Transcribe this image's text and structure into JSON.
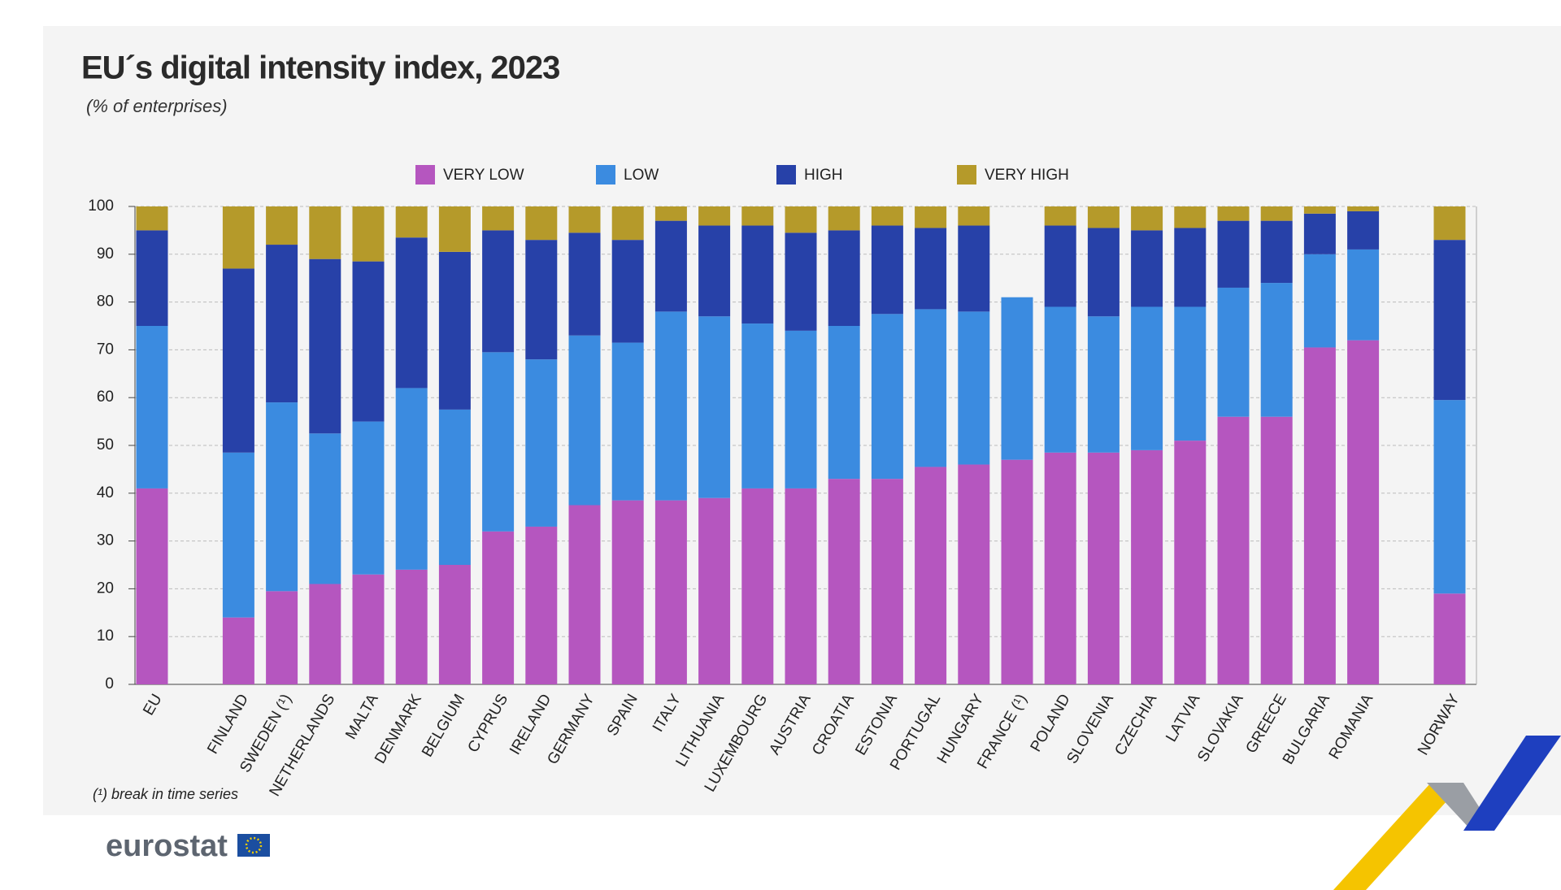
{
  "chart_data": {
    "type": "stacked_bar",
    "title": "EU´s digital intensity index, 2023",
    "subtitle": "(% of enterprises)",
    "footnote": "(¹) break in time series",
    "source": "eurostat",
    "categories": [
      "EU",
      "FINLAND",
      "SWEDEN (¹)",
      "NETHERLANDS",
      "MALTA",
      "DENMARK",
      "BELGIUM",
      "CYPRUS",
      "IRELAND",
      "GERMANY",
      "SPAIN",
      "ITALY",
      "LITHUANIA",
      "LUXEMBOURG",
      "AUSTRIA",
      "CROATIA",
      "ESTONIA",
      "PORTUGAL",
      "HUNGARY",
      "FRANCE (¹)",
      "POLAND",
      "SLOVENIA",
      "CZECHIA",
      "LATVIA",
      "SLOVAKIA",
      "GREECE",
      "BULGARIA",
      "ROMANIA",
      "NORWAY"
    ],
    "series": [
      {
        "name": "VERY LOW",
        "color": "#b556bf",
        "values": [
          41,
          14,
          19.5,
          21,
          23,
          24,
          25,
          32,
          33,
          37.5,
          38.5,
          38.5,
          39,
          41,
          41,
          43,
          43,
          45.5,
          46,
          47,
          48.5,
          48.5,
          49,
          51,
          56,
          56,
          70.5,
          72,
          19
        ]
      },
      {
        "name": "LOW",
        "color": "#3b8be0",
        "values": [
          34,
          34.5,
          39.5,
          31.5,
          32,
          38,
          32.5,
          37.5,
          35,
          35.5,
          33,
          39.5,
          38,
          34.5,
          33,
          32,
          34.5,
          33,
          32,
          34,
          30.5,
          28.5,
          30,
          28,
          27,
          28,
          19.5,
          19,
          40.5
        ]
      },
      {
        "name": "HIGH",
        "color": "#2741a8",
        "values": [
          20,
          38.5,
          33,
          36.5,
          33.5,
          31.5,
          33,
          25.5,
          25,
          21.5,
          21.5,
          19,
          19,
          20.5,
          20.5,
          20,
          18.5,
          17,
          18,
          null,
          17,
          18.5,
          16,
          16.5,
          14,
          13,
          8.5,
          8,
          33.5
        ]
      },
      {
        "name": "VERY HIGH",
        "color": "#b59a2a",
        "values": [
          5,
          13,
          8,
          11,
          11.5,
          6.5,
          9.5,
          5,
          7,
          5.5,
          7,
          3,
          4,
          4,
          5.5,
          5,
          4,
          4.5,
          4,
          null,
          4,
          4.5,
          5,
          4.5,
          3,
          3,
          1.5,
          1,
          7
        ]
      }
    ],
    "ylim": [
      0,
      100
    ],
    "yticks": [
      0,
      10,
      20,
      30,
      40,
      50,
      60,
      70,
      80,
      90,
      100
    ],
    "grid": true,
    "legend": "top"
  }
}
